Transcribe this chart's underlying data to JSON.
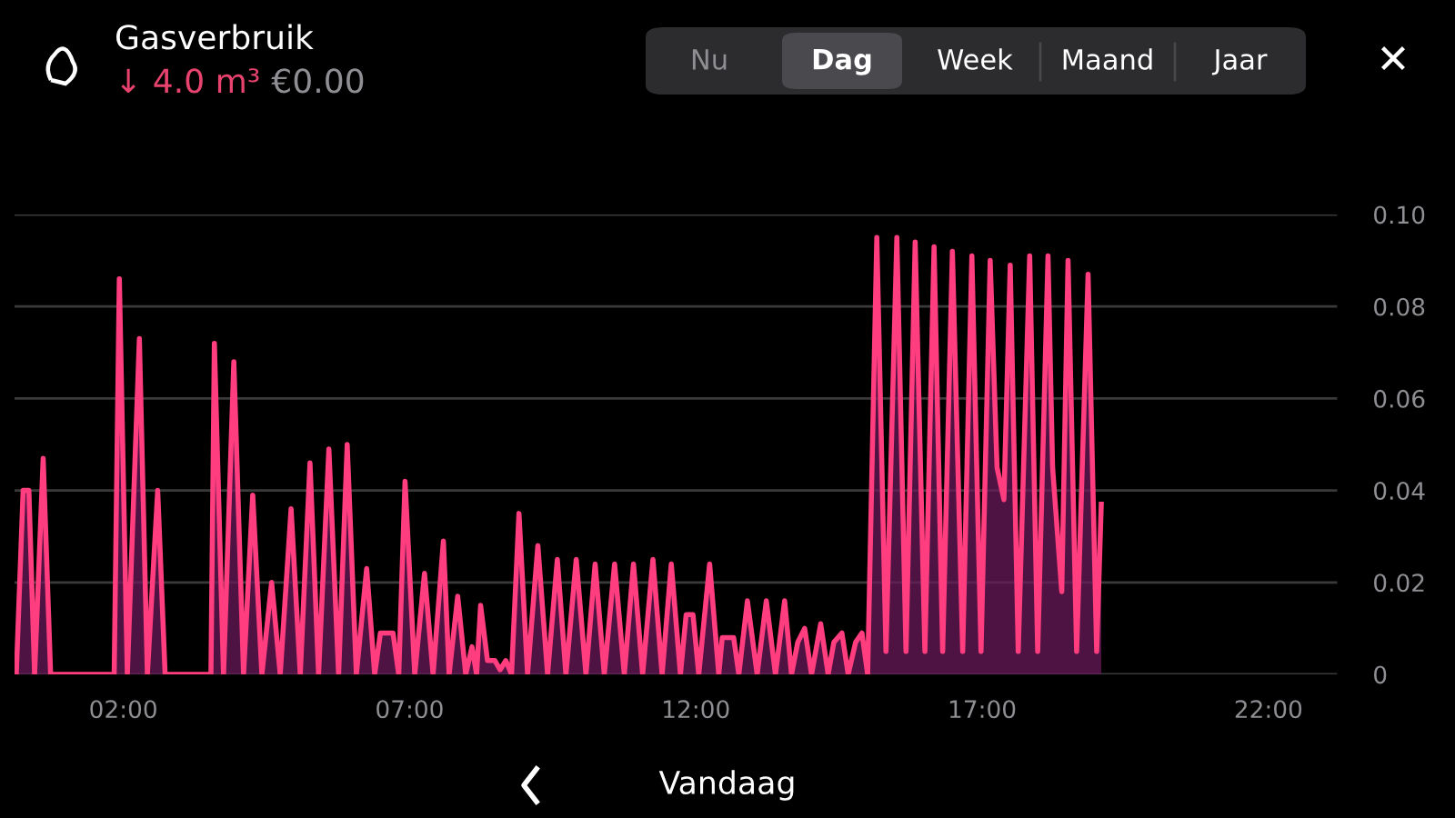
{
  "chart_data": {
    "type": "area",
    "title": "Gasverbruik",
    "subtitle": "↓ 4.0 m³",
    "annotations": [
      "€0.00",
      "Nu",
      "Dag",
      "Week",
      "Maand",
      "Jaar",
      "✕",
      "Vandaag"
    ],
    "series": [
      {
        "color": "#ff3d7f",
        "x": [
          0.13,
          0.25,
          0.35,
          0.45,
          0.6,
          0.73,
          1.84,
          1.93,
          2.07,
          2.28,
          2.42,
          2.6,
          2.73,
          3.53,
          3.59,
          3.75,
          3.93,
          4.1,
          4.26,
          4.42,
          4.59,
          4.74,
          4.93,
          5.09,
          5.26,
          5.41,
          5.59,
          5.76,
          5.91,
          6.07,
          6.25,
          6.39,
          6.49,
          6.71,
          6.81,
          6.92,
          7.09,
          7.26,
          7.41,
          7.59,
          7.69,
          7.84,
          7.98,
          8.09,
          8.17,
          8.24,
          8.36,
          8.49,
          8.58,
          8.68,
          8.78,
          8.91,
          9.06,
          9.24,
          9.41,
          9.58,
          9.73,
          9.91,
          10.08,
          10.24,
          10.4,
          10.58,
          10.75,
          10.91,
          11.07,
          11.25,
          11.41,
          11.57,
          11.73,
          11.83,
          11.95,
          12.05,
          12.24,
          12.4,
          12.46,
          12.66,
          12.75,
          12.9,
          13.07,
          13.23,
          13.39,
          13.55,
          13.67,
          13.78,
          13.9,
          14.02,
          14.18,
          14.31,
          14.41,
          14.55,
          14.66,
          14.79,
          14.9,
          15.0,
          15.16,
          15.32,
          15.51,
          15.67,
          15.83,
          16.0,
          16.16,
          16.31,
          16.48,
          16.66,
          16.82,
          16.98,
          17.14,
          17.26,
          17.38,
          17.49,
          17.63,
          17.83,
          17.97,
          18.15,
          18.23,
          18.39,
          18.5,
          18.65,
          18.85,
          19.0,
          19.08
        ],
        "values": [
          0,
          0.04,
          0.04,
          0,
          0.047,
          0,
          0,
          0.086,
          0,
          0.073,
          0,
          0.04,
          0,
          0,
          0.072,
          0,
          0.068,
          0,
          0.039,
          0,
          0.02,
          0,
          0.036,
          0,
          0.046,
          0,
          0.049,
          0,
          0.05,
          0,
          0.023,
          0,
          0.009,
          0.009,
          0,
          0.042,
          0,
          0.022,
          0,
          0.029,
          0,
          0.017,
          0,
          0.006,
          0,
          0.015,
          0.003,
          0.003,
          0.001,
          0.003,
          0,
          0.035,
          0,
          0.028,
          0,
          0.025,
          0,
          0.025,
          0,
          0.024,
          0,
          0.024,
          0,
          0.024,
          0,
          0.025,
          0,
          0.024,
          0,
          0.013,
          0.013,
          0,
          0.024,
          0,
          0.008,
          0.008,
          0,
          0.016,
          0,
          0.016,
          0,
          0.016,
          0,
          0.007,
          0.01,
          0,
          0.011,
          0,
          0.007,
          0.009,
          0,
          0.007,
          0.009,
          0,
          0.095,
          0.005,
          0.095,
          0.005,
          0.094,
          0.005,
          0.093,
          0.005,
          0.092,
          0.005,
          0.091,
          0.005,
          0.09,
          0.045,
          0.038,
          0.089,
          0.005,
          0.091,
          0.005,
          0.091,
          0.045,
          0.018,
          0.09,
          0.005,
          0.087,
          0.005,
          0.037
        ]
      }
    ],
    "xlim": [
      0.1,
      23.2
    ],
    "ylim": [
      0,
      0.1
    ],
    "xticks": [
      {
        "value": 2,
        "label": "02:00"
      },
      {
        "value": 7,
        "label": "07:00"
      },
      {
        "value": 12,
        "label": "12:00"
      },
      {
        "value": 17,
        "label": "17:00"
      },
      {
        "value": 22,
        "label": "22:00"
      }
    ],
    "yticks": [
      0,
      0.02,
      0.04,
      0.06,
      0.08,
      {
        "value": 0.1,
        "label": "0.10"
      }
    ],
    "grid": "y",
    "line_style": "solid",
    "marker": "none"
  }
}
